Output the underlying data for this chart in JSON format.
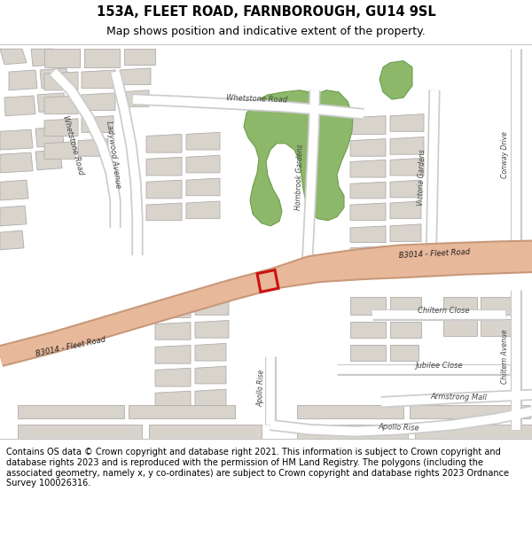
{
  "title_line1": "153A, FLEET ROAD, FARNBOROUGH, GU14 9SL",
  "title_line2": "Map shows position and indicative extent of the property.",
  "footer_text": "Contains OS data © Crown copyright and database right 2021. This information is subject to Crown copyright and database rights 2023 and is reproduced with the permission of HM Land Registry. The polygons (including the associated geometry, namely x, y co-ordinates) are subject to Crown copyright and database rights 2023 Ordnance Survey 100026316.",
  "map_bg": "#eeece8",
  "road_main_color": "#e8b89a",
  "road_main_outline": "#c8987a",
  "road_minor_color": "#ffffff",
  "road_minor_outline": "#cccccc",
  "building_fill": "#d8d4cc",
  "building_outline": "#b0acaa",
  "green_fill": "#8db86a",
  "green_outline": "#6a9e4a",
  "highlight_color": "#cc1111",
  "title_fontsize": 10.5,
  "subtitle_fontsize": 9,
  "footer_fontsize": 7,
  "label_fontsize": 6
}
